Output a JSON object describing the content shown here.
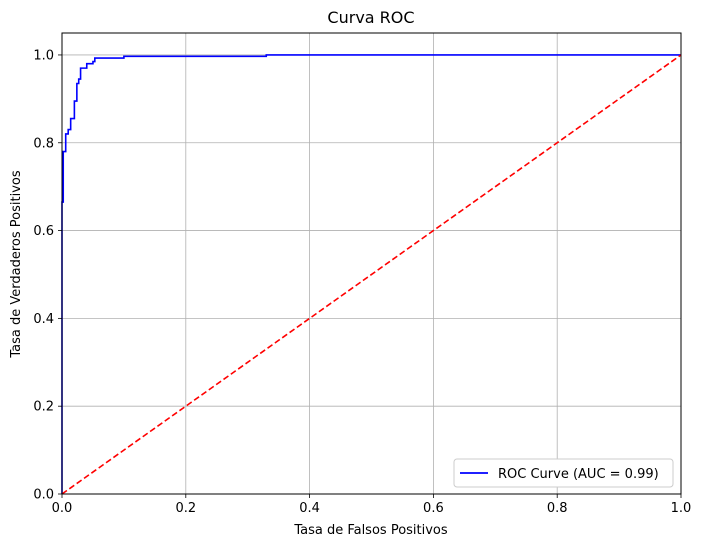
{
  "chart_data": {
    "type": "line",
    "title": "Curva ROC",
    "xlabel": "Tasa de Falsos Positivos",
    "ylabel": "Tasa de Verdaderos Positivos",
    "xlim": [
      0.0,
      1.0
    ],
    "ylim": [
      0.0,
      1.05
    ],
    "x_ticks": [
      "0.0",
      "0.2",
      "0.4",
      "0.6",
      "0.8",
      "1.0"
    ],
    "y_ticks": [
      "0.0",
      "0.2",
      "0.4",
      "0.6",
      "0.8",
      "1.0"
    ],
    "grid": true,
    "legend_position": "lower-right",
    "series": [
      {
        "name": "ROC Curve (AUC = 0.99)",
        "color": "#0000ff",
        "style": "solid",
        "points": [
          [
            0.0,
            0.0
          ],
          [
            0.0,
            0.665
          ],
          [
            0.002,
            0.665
          ],
          [
            0.002,
            0.78
          ],
          [
            0.006,
            0.78
          ],
          [
            0.006,
            0.82
          ],
          [
            0.01,
            0.82
          ],
          [
            0.01,
            0.83
          ],
          [
            0.014,
            0.83
          ],
          [
            0.014,
            0.855
          ],
          [
            0.02,
            0.855
          ],
          [
            0.02,
            0.895
          ],
          [
            0.024,
            0.895
          ],
          [
            0.024,
            0.935
          ],
          [
            0.027,
            0.935
          ],
          [
            0.027,
            0.945
          ],
          [
            0.03,
            0.945
          ],
          [
            0.03,
            0.97
          ],
          [
            0.04,
            0.97
          ],
          [
            0.04,
            0.98
          ],
          [
            0.05,
            0.98
          ],
          [
            0.05,
            0.985
          ],
          [
            0.053,
            0.985
          ],
          [
            0.053,
            0.993
          ],
          [
            0.1,
            0.993
          ],
          [
            0.1,
            0.997
          ],
          [
            0.33,
            0.997
          ],
          [
            0.33,
            1.0
          ],
          [
            1.0,
            1.0
          ]
        ]
      },
      {
        "name": "",
        "color": "#ff0000",
        "style": "dashed",
        "points": [
          [
            0.0,
            0.0
          ],
          [
            1.0,
            1.0
          ]
        ]
      }
    ]
  }
}
